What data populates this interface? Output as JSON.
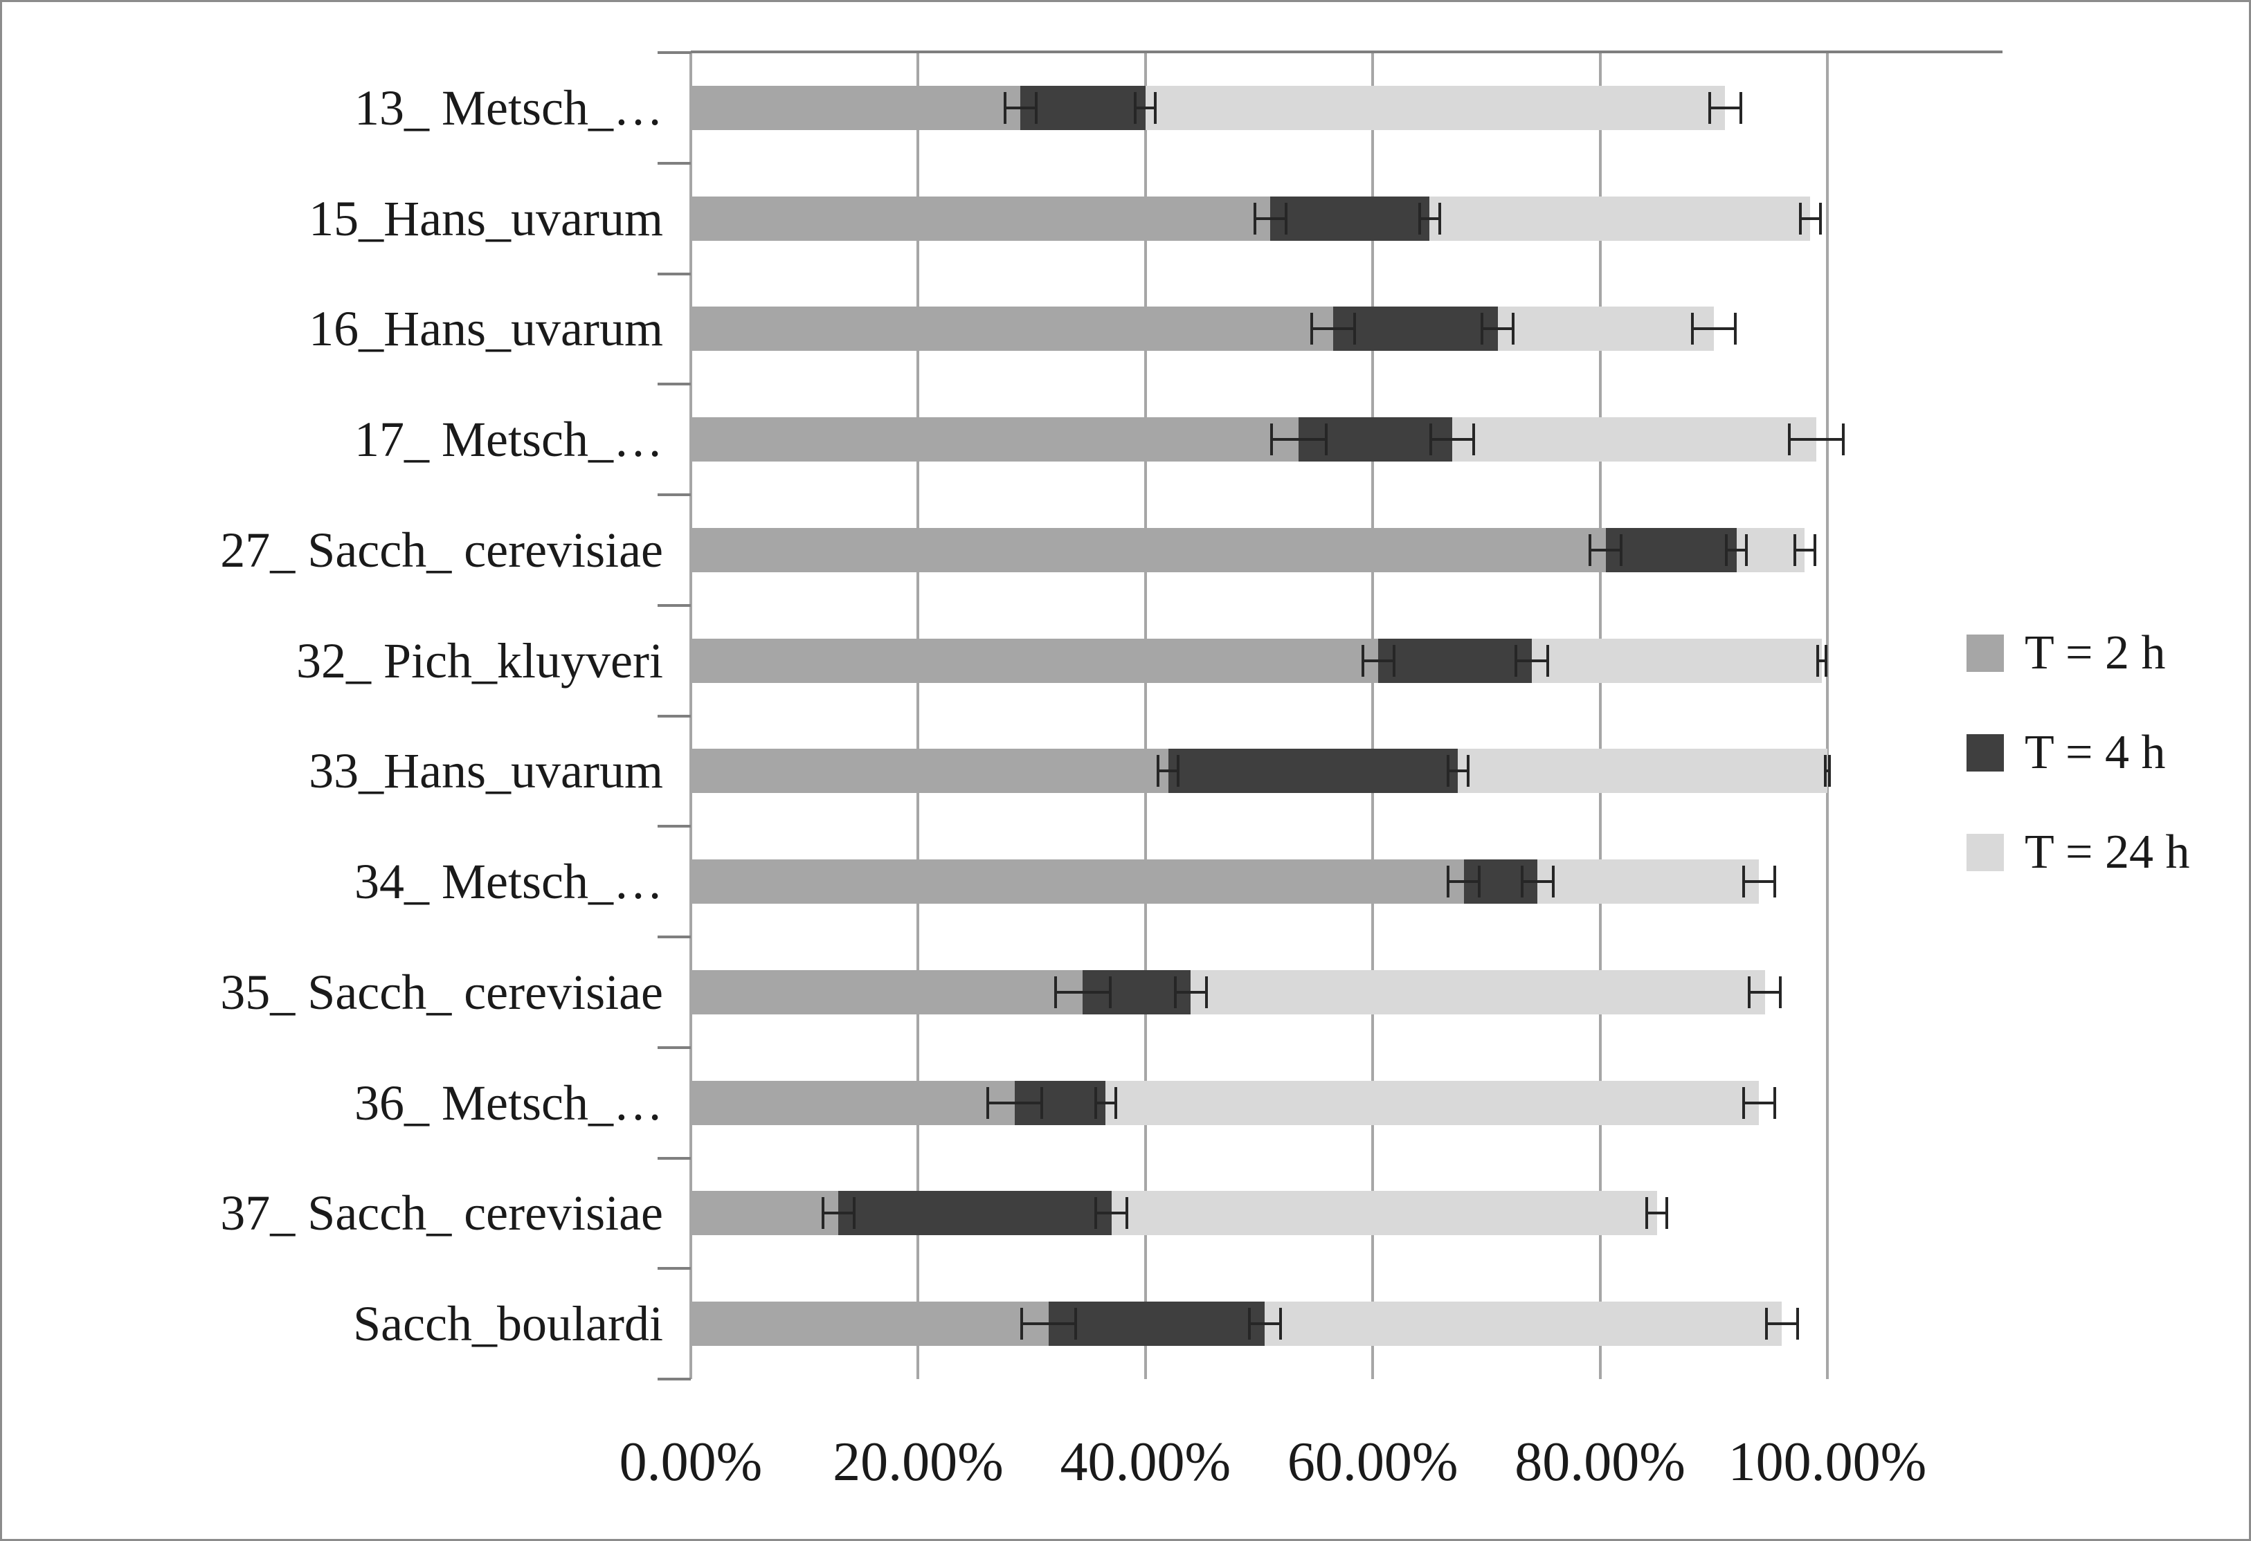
{
  "colors": {
    "t2h": "#a6a6a6",
    "t4h": "#3f3f3f",
    "t24h": "#d9d9d9",
    "gridline": "#a6a6a6",
    "axis": "#7f7f7f",
    "error_bar": "#262626"
  },
  "chart_data": {
    "type": "bar",
    "orientation": "horizontal",
    "title": "",
    "xlabel": "",
    "ylabel": "",
    "grid": true,
    "legend_position": "right",
    "categories": [
      "13_ Metsch_…",
      "15_Hans_uvarum",
      "16_Hans_uvarum",
      "17_ Metsch_…",
      "27_ Sacch_ cerevisiae",
      "32_ Pich_kluyveri",
      "33_Hans_uvarum",
      "34_ Metsch_…",
      "35_ Sacch_ cerevisiae",
      "36_ Metsch_…",
      "37_ Sacch_ cerevisiae",
      "Sacch_boulardi"
    ],
    "series": [
      {
        "name": "T = 2 h",
        "key": "t2h",
        "color": "#a6a6a6",
        "values": [
          29,
          51,
          56.5,
          53.5,
          80.5,
          60.5,
          42,
          68,
          34.5,
          28.5,
          13,
          31.5
        ],
        "errors": [
          1.5,
          1.5,
          2,
          2.5,
          1.5,
          1.5,
          1,
          1.5,
          2.5,
          2.5,
          1.5,
          2.5
        ]
      },
      {
        "name": "T = 4 h",
        "key": "t4h",
        "color": "#3f3f3f",
        "values": [
          40,
          65,
          71,
          67,
          92,
          74,
          67.5,
          74.5,
          44,
          36.5,
          37,
          50.5
        ],
        "errors": [
          1,
          1,
          1.5,
          2,
          1,
          1.5,
          1,
          1.5,
          1.5,
          1,
          1.5,
          1.5
        ]
      },
      {
        "name": "T = 24 h",
        "key": "t24h",
        "color": "#d9d9d9",
        "values": [
          91,
          98.5,
          90,
          99,
          98,
          99.5,
          100,
          94,
          94.5,
          94,
          85,
          96
        ],
        "errors": [
          1.5,
          1,
          2,
          2.5,
          1,
          0.5,
          0.3,
          1.5,
          1.5,
          1.5,
          1,
          1.5
        ]
      }
    ],
    "x_axis": {
      "min": 0,
      "max": 100,
      "tick_values": [
        0,
        20,
        40,
        60,
        80,
        100
      ],
      "tick_labels": [
        "0.00%",
        "20.00%",
        "40.00%",
        "60.00%",
        "80.00%",
        "100.00%"
      ]
    }
  }
}
